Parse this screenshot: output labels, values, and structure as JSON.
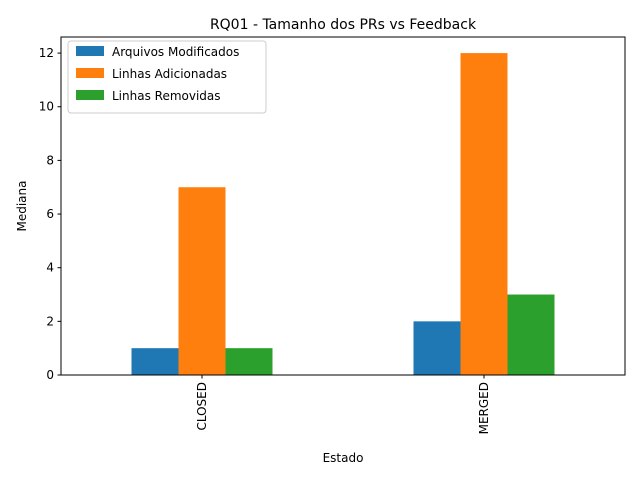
{
  "chart_data": {
    "type": "bar",
    "title": "RQ01 - Tamanho dos PRs vs Feedback",
    "xlabel": "Estado",
    "ylabel": "Mediana",
    "categories": [
      "CLOSED",
      "MERGED"
    ],
    "series": [
      {
        "name": "Arquivos Modificados",
        "values": [
          1,
          2
        ],
        "color": "#1f77b4"
      },
      {
        "name": "Linhas Adicionadas",
        "values": [
          7,
          12
        ],
        "color": "#ff7f0e"
      },
      {
        "name": "Linhas Removidas",
        "values": [
          1,
          3
        ],
        "color": "#2ca02c"
      }
    ],
    "ylim": [
      0,
      12.6
    ],
    "yticks": [
      0,
      2,
      4,
      6,
      8,
      10,
      12
    ],
    "grid": false,
    "legend_position": "top-left"
  }
}
